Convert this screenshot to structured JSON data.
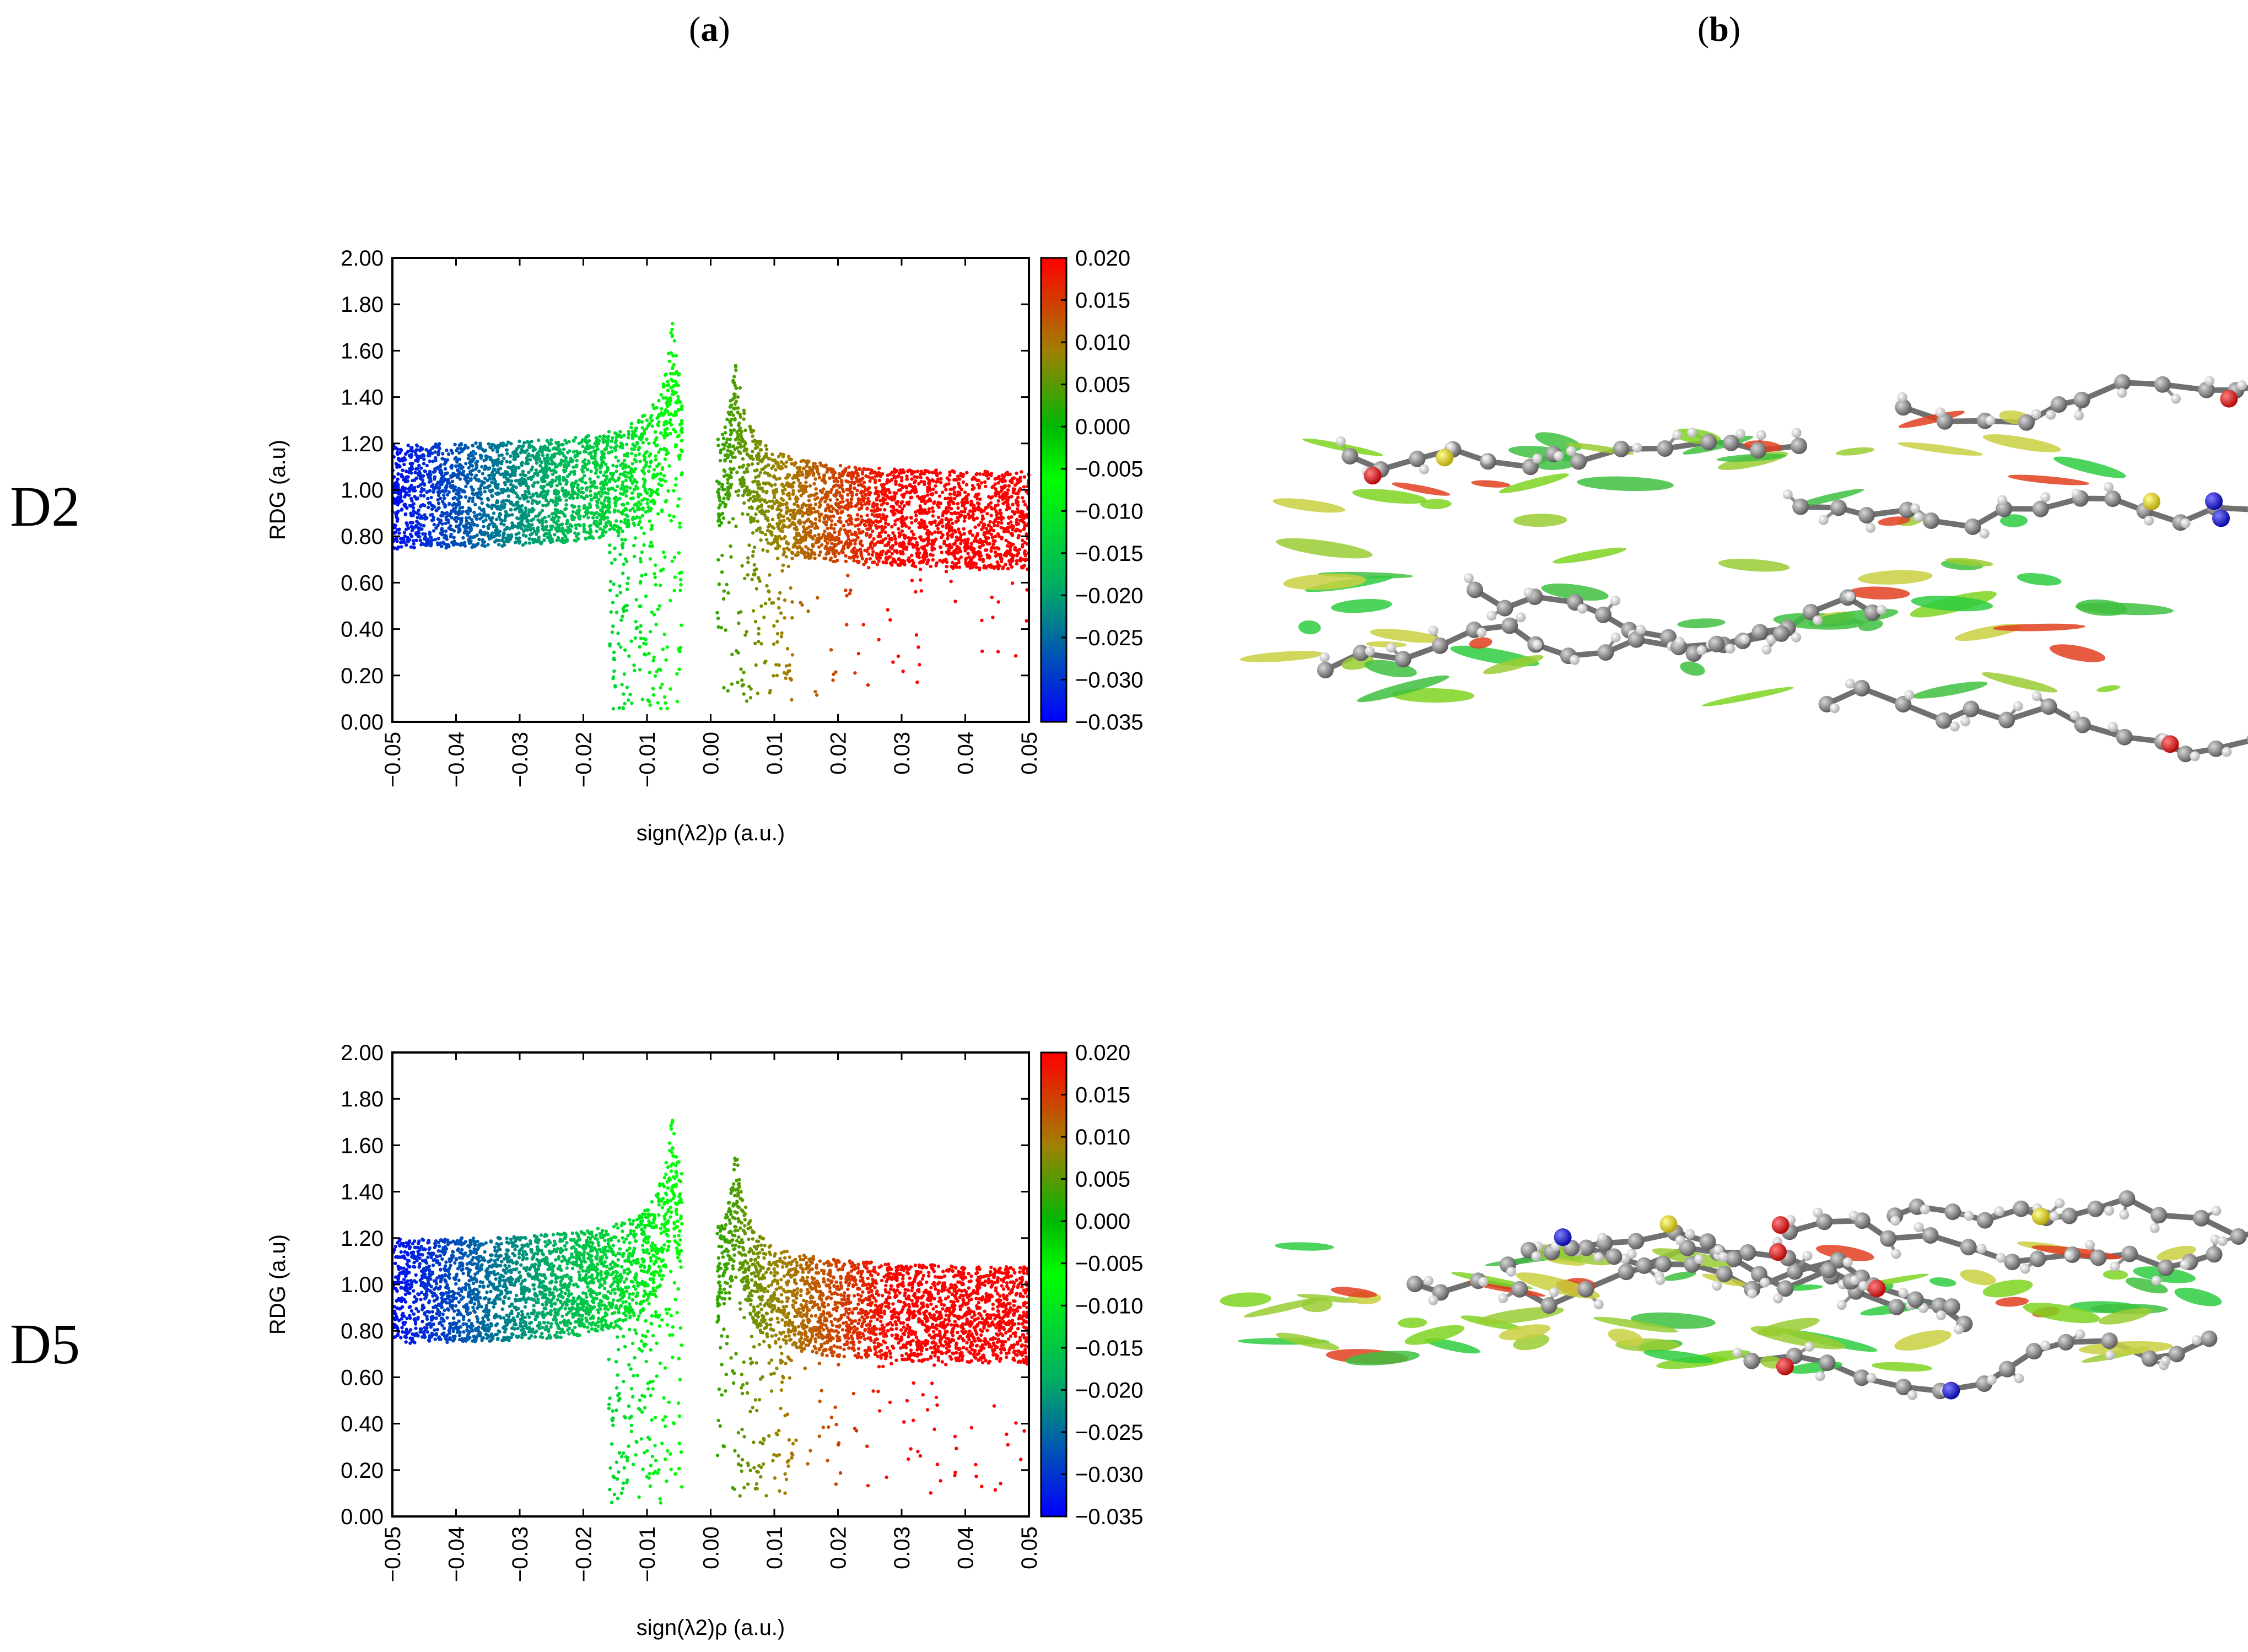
{
  "figure": {
    "panel_a_letter": "a",
    "panel_b_letter": "b",
    "rows": [
      {
        "label": "D2",
        "image_caption": "NCI isosurfaces of D2 molecular structure"
      },
      {
        "label": "D5",
        "image_caption": "NCI isosurfaces of D5 molecular structure"
      }
    ]
  },
  "chart_data": [
    {
      "type": "scatter",
      "name": "D2 RDG scatter",
      "xlabel": "sign(λ2)ρ (a.u.)",
      "ylabel": "RDG (a.u)",
      "xlim": [
        -0.05,
        0.05
      ],
      "ylim": [
        0.0,
        2.0
      ],
      "x_ticks": [
        "−0.05",
        "−0.04",
        "−0.03",
        "−0.02",
        "−0.01",
        "0.00",
        "0.01",
        "0.02",
        "0.03",
        "0.04",
        "0.05"
      ],
      "y_ticks": [
        "0.00",
        "0.20",
        "0.40",
        "0.60",
        "0.80",
        "1.00",
        "1.20",
        "1.40",
        "1.60",
        "1.80",
        "2.00"
      ],
      "colorbar": {
        "range": [
          -0.035,
          0.02
        ],
        "ticks": [
          "0.020",
          "0.015",
          "0.010",
          "0.005",
          "0.000",
          "−0.005",
          "−0.010",
          "−0.015",
          "−0.020",
          "−0.025",
          "−0.030",
          "−0.035"
        ],
        "colors": {
          "low": "#0000ff",
          "mid_low": "#00ff00",
          "zero": "#00c000",
          "mid_high": "#a07000",
          "high": "#ff0000"
        }
      },
      "lobes": [
        {
          "side": "negative",
          "spike_center": -0.006,
          "rdg_at_edge": 0.95,
          "min_rdg": 0.05
        },
        {
          "side": "positive",
          "spike_center": 0.004,
          "rdg_at_edge": 0.85,
          "min_rdg": 0.1
        }
      ]
    },
    {
      "type": "scatter",
      "name": "D5 RDG scatter",
      "xlabel": "sign(λ2)ρ (a.u.)",
      "ylabel": "RDG (a.u)",
      "xlim": [
        -0.05,
        0.05
      ],
      "ylim": [
        0.0,
        2.0
      ],
      "x_ticks": [
        "−0.05",
        "−0.04",
        "−0.03",
        "−0.02",
        "−0.01",
        "0.00",
        "0.01",
        "0.02",
        "0.03",
        "0.04",
        "0.05"
      ],
      "y_ticks": [
        "0.00",
        "0.20",
        "0.40",
        "0.60",
        "0.80",
        "1.00",
        "1.20",
        "1.40",
        "1.60",
        "1.80",
        "2.00"
      ],
      "colorbar": {
        "range": [
          -0.035,
          0.02
        ],
        "ticks": [
          "0.020",
          "0.015",
          "0.010",
          "0.005",
          "0.000",
          "−0.005",
          "−0.010",
          "−0.015",
          "−0.020",
          "−0.025",
          "−0.030",
          "−0.035"
        ],
        "colors": {
          "low": "#0000ff",
          "mid_low": "#00ff00",
          "zero": "#00c000",
          "mid_high": "#a07000",
          "high": "#ff0000"
        }
      },
      "lobes": [
        {
          "side": "negative",
          "spike_center": -0.006,
          "rdg_at_edge": 0.95,
          "min_rdg": 0.05
        },
        {
          "side": "positive",
          "spike_center": 0.004,
          "rdg_at_edge": 0.85,
          "min_rdg": 0.05
        }
      ]
    }
  ]
}
